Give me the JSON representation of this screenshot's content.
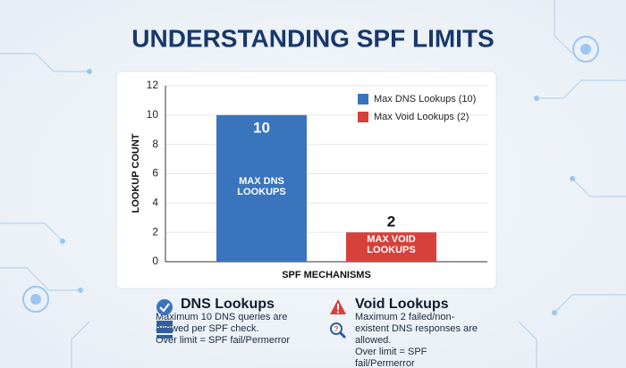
{
  "chart_data": {
    "type": "bar",
    "title": "UNDERSTANDING SPF LIMITS",
    "categories": [
      "MAX DNS LOOKUPS",
      "MAX VOID LOOKUPS"
    ],
    "values": [
      10,
      2
    ],
    "colors": [
      "#3a74bd",
      "#d8403a"
    ],
    "legend": [
      "Max DNS Lookups (10)",
      "Max Void Lookups (2)"
    ],
    "ylabel": "LOOKUP COUNT",
    "xlabel": "SPF MECHANISMS",
    "ylim": [
      0,
      12
    ],
    "yticks": [
      0,
      2,
      4,
      6,
      8,
      10,
      12
    ],
    "grid": true
  },
  "info": [
    {
      "title": "DNS Lookups",
      "description": "Maximum 10 DNS queries are allowed per SPF check.",
      "note": "Over limit = SPF fail/Permerror"
    },
    {
      "title": "Void Lookups",
      "description": "Maximum 2 failed/non-existent DNS responses are allowed.",
      "note": "Over limit = SPF fail/Permerror"
    }
  ]
}
